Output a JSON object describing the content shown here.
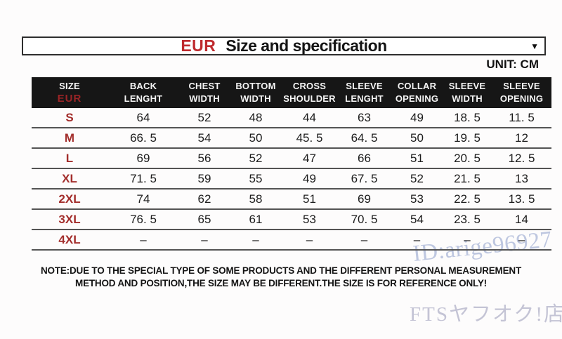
{
  "title": {
    "region": "EUR",
    "text": "Size and specification",
    "dropdown_icon": "▼"
  },
  "unit_label": "UNIT: CM",
  "table": {
    "header": {
      "size_line1": "SIZE",
      "size_line2": "EUR",
      "columns": [
        {
          "line1": "BACK",
          "line2": "LENGHT"
        },
        {
          "line1": "CHEST",
          "line2": "WIDTH"
        },
        {
          "line1": "BOTTOM",
          "line2": "WIDTH"
        },
        {
          "line1": "CROSS",
          "line2": "SHOULDER"
        },
        {
          "line1": "SLEEVE",
          "line2": "LENGHT"
        },
        {
          "line1": "COLLAR",
          "line2": "OPENING"
        },
        {
          "line1": "SLEEVE",
          "line2": "WIDTH"
        },
        {
          "line1": "SLEEVE",
          "line2": "OPENING"
        }
      ]
    },
    "rows": [
      {
        "size": "S",
        "values": [
          "64",
          "52",
          "48",
          "44",
          "63",
          "49",
          "18. 5",
          "11. 5"
        ]
      },
      {
        "size": "M",
        "values": [
          "66. 5",
          "54",
          "50",
          "45. 5",
          "64. 5",
          "50",
          "19. 5",
          "12"
        ]
      },
      {
        "size": "L",
        "values": [
          "69",
          "56",
          "52",
          "47",
          "66",
          "51",
          "20. 5",
          "12. 5"
        ]
      },
      {
        "size": "XL",
        "values": [
          "71. 5",
          "59",
          "55",
          "49",
          "67. 5",
          "52",
          "21. 5",
          "13"
        ]
      },
      {
        "size": "2XL",
        "values": [
          "74",
          "62",
          "58",
          "51",
          "69",
          "53",
          "22. 5",
          "13. 5"
        ]
      },
      {
        "size": "3XL",
        "values": [
          "76. 5",
          "65",
          "61",
          "53",
          "70. 5",
          "54",
          "23. 5",
          "14"
        ]
      },
      {
        "size": "4XL",
        "values": [
          "–",
          "–",
          "–",
          "–",
          "–",
          "–",
          "–",
          "–"
        ]
      }
    ]
  },
  "note": {
    "line1": "NOTE:DUE TO THE SPECIAL TYPE OF SOME PRODUCTS AND THE DIFFERENT PERSONAL MEASUREMENT",
    "line2": "METHOD AND POSITION,THE SIZE MAY BE DIFFERENT.THE SIZE IS FOR REFERENCE ONLY!"
  },
  "watermarks": {
    "seller_id": "ID:arige96927",
    "store_name": "FTSヤフオク!店"
  },
  "colors": {
    "accent_red": "#bf2a2e",
    "size_label_red": "#a32e2c",
    "header_bg": "#161616",
    "header_eur_red": "#9b2426",
    "watermark_blue": "#94a4cd",
    "watermark_gray": "#9696b4"
  }
}
